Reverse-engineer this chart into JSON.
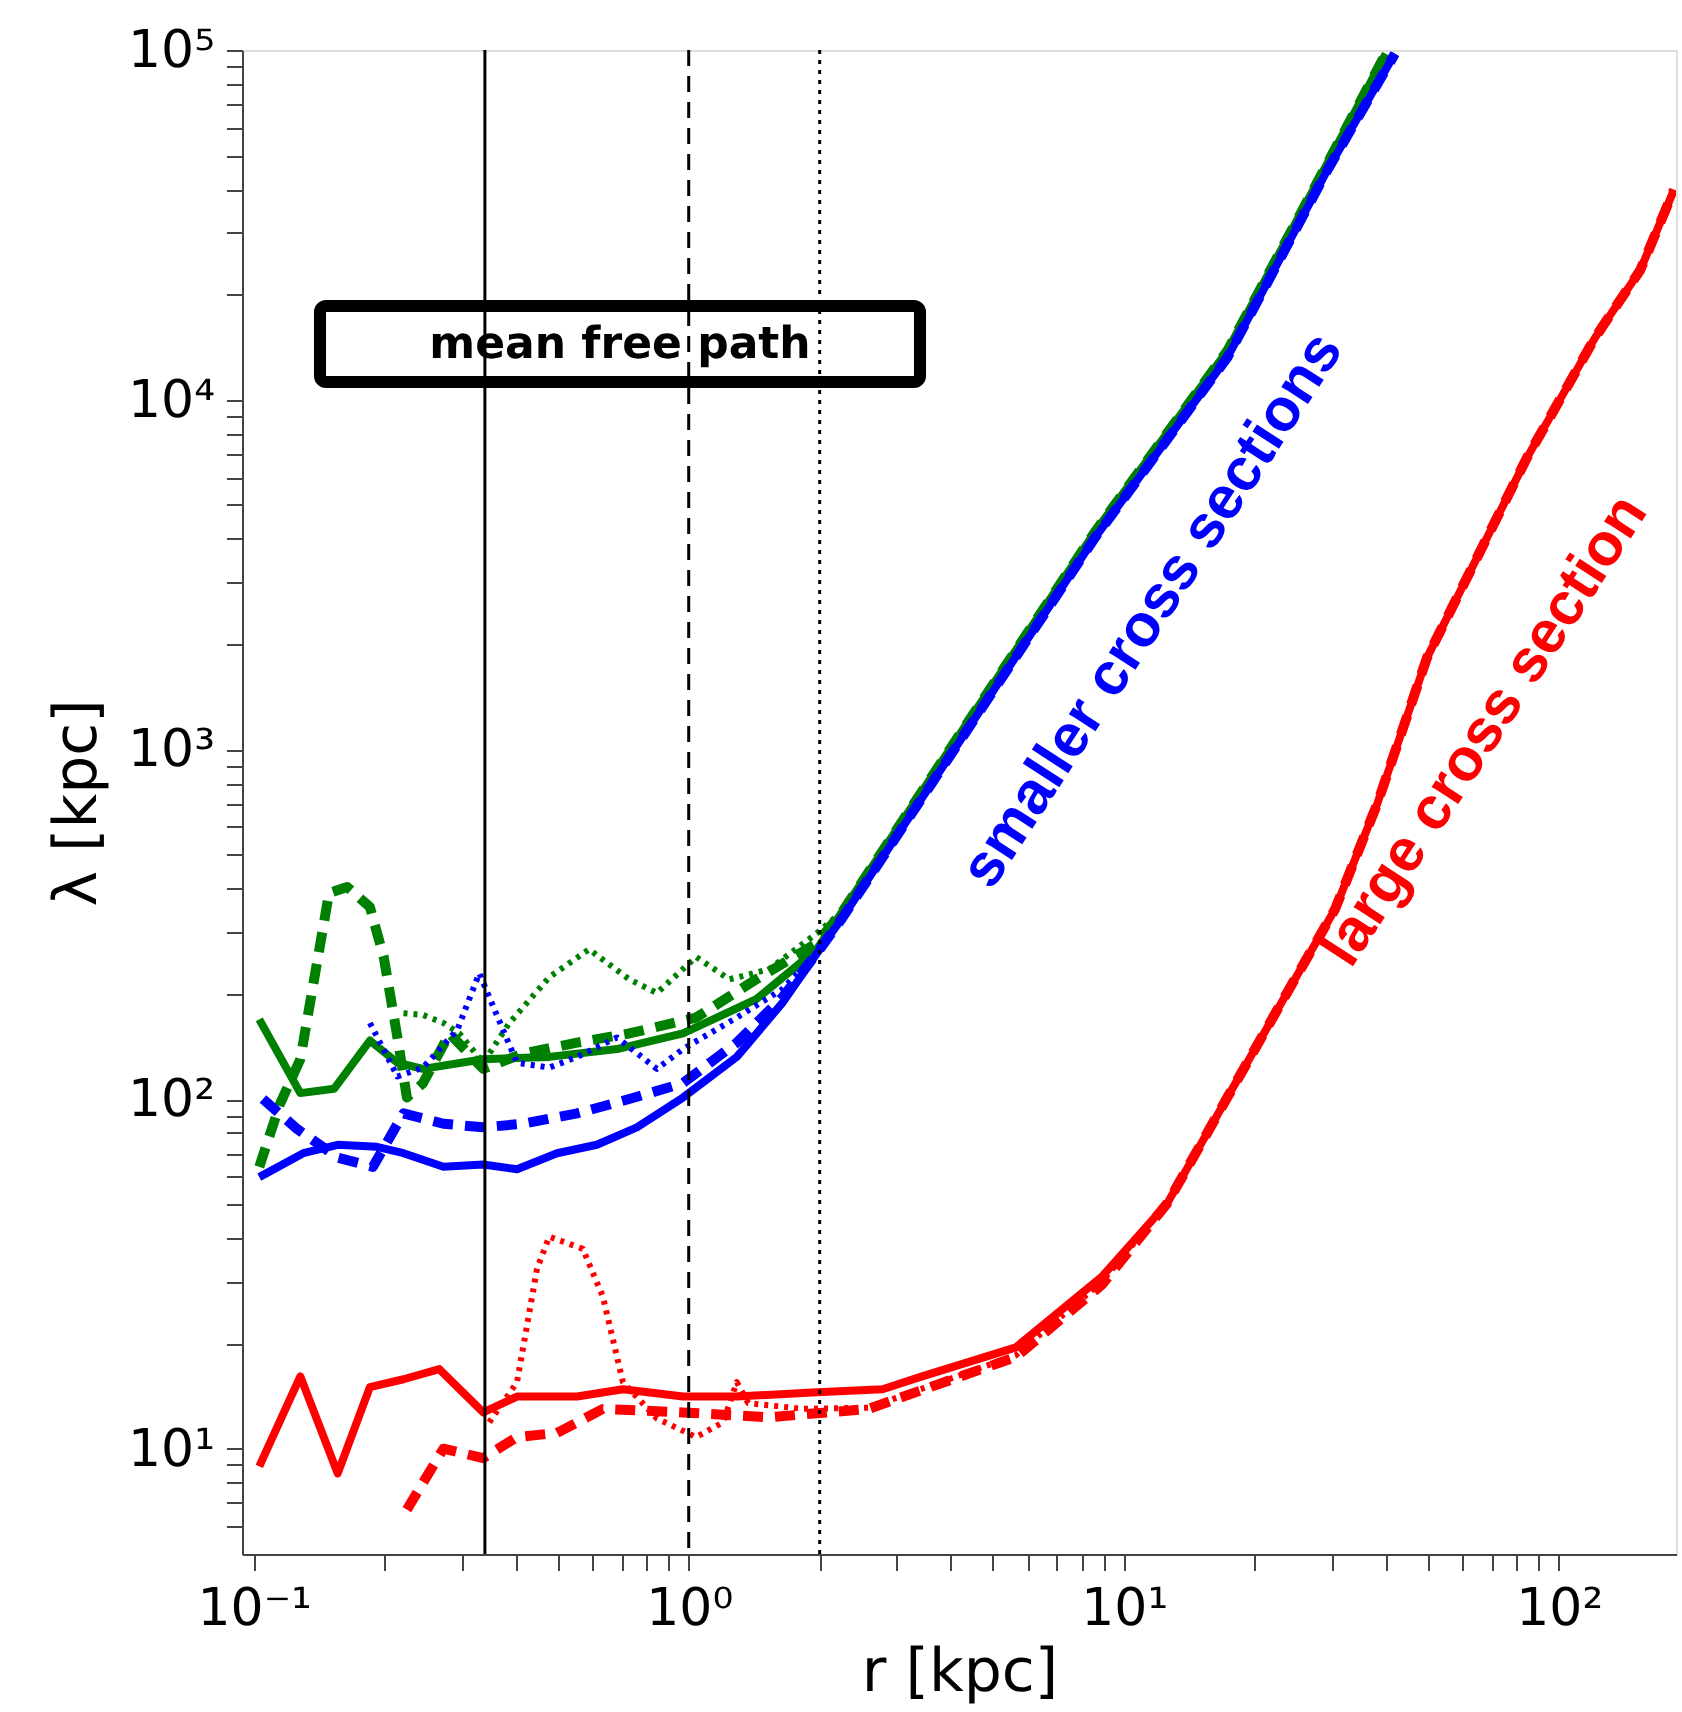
{
  "chart_data": {
    "type": "line",
    "xlabel": "r [kpc]",
    "ylabel": "λ [kpc]",
    "annotations": [
      "mean free path"
    ],
    "log": "xy",
    "grid": false,
    "marker": "none",
    "xlim": [
      0.094,
      186
    ],
    "ylim": [
      5,
      100000
    ],
    "xticks": [
      {
        "value": 0.1,
        "label": "10⁻¹"
      },
      {
        "value": 0.2,
        "label": null
      },
      {
        "value": 0.3,
        "label": null
      },
      {
        "value": 0.4,
        "label": null
      },
      {
        "value": 0.5,
        "label": null
      },
      {
        "value": 0.6,
        "label": null
      },
      {
        "value": 0.7,
        "label": null
      },
      {
        "value": 0.8,
        "label": null
      },
      {
        "value": 0.9,
        "label": null
      },
      {
        "value": 1,
        "label": "10⁰"
      },
      {
        "value": 2,
        "label": null
      },
      {
        "value": 3,
        "label": null
      },
      {
        "value": 4,
        "label": null
      },
      {
        "value": 5,
        "label": null
      },
      {
        "value": 6,
        "label": null
      },
      {
        "value": 7,
        "label": null
      },
      {
        "value": 8,
        "label": null
      },
      {
        "value": 9,
        "label": null
      },
      {
        "value": 10,
        "label": "10¹"
      },
      {
        "value": 20,
        "label": null
      },
      {
        "value": 30,
        "label": null
      },
      {
        "value": 40,
        "label": null
      },
      {
        "value": 50,
        "label": null
      },
      {
        "value": 60,
        "label": null
      },
      {
        "value": 70,
        "label": null
      },
      {
        "value": 80,
        "label": null
      },
      {
        "value": 90,
        "label": null
      },
      {
        "value": 100,
        "label": "10²"
      }
    ],
    "yticks": [
      {
        "value": 6,
        "label": null
      },
      {
        "value": 7,
        "label": null
      },
      {
        "value": 8,
        "label": null
      },
      {
        "value": 9,
        "label": null
      },
      {
        "value": 10,
        "label": "10¹"
      },
      {
        "value": 20,
        "label": null
      },
      {
        "value": 30,
        "label": null
      },
      {
        "value": 40,
        "label": null
      },
      {
        "value": 50,
        "label": null
      },
      {
        "value": 60,
        "label": null
      },
      {
        "value": 70,
        "label": null
      },
      {
        "value": 80,
        "label": null
      },
      {
        "value": 90,
        "label": null
      },
      {
        "value": 100,
        "label": "10²"
      },
      {
        "value": 200,
        "label": null
      },
      {
        "value": 300,
        "label": null
      },
      {
        "value": 400,
        "label": null
      },
      {
        "value": 500,
        "label": null
      },
      {
        "value": 600,
        "label": null
      },
      {
        "value": 700,
        "label": null
      },
      {
        "value": 800,
        "label": null
      },
      {
        "value": 900,
        "label": null
      },
      {
        "value": 1000,
        "label": "10³"
      },
      {
        "value": 2000,
        "label": null
      },
      {
        "value": 3000,
        "label": null
      },
      {
        "value": 4000,
        "label": null
      },
      {
        "value": 5000,
        "label": null
      },
      {
        "value": 6000,
        "label": null
      },
      {
        "value": 7000,
        "label": null
      },
      {
        "value": 8000,
        "label": null
      },
      {
        "value": 9000,
        "label": null
      },
      {
        "value": 10000,
        "label": "10⁴"
      },
      {
        "value": 20000,
        "label": null
      },
      {
        "value": 30000,
        "label": null
      },
      {
        "value": 40000,
        "label": null
      },
      {
        "value": 50000,
        "label": null
      },
      {
        "value": 60000,
        "label": null
      },
      {
        "value": 70000,
        "label": null
      },
      {
        "value": 80000,
        "label": null
      },
      {
        "value": 90000,
        "label": null
      },
      {
        "value": 100000,
        "label": "10⁵"
      }
    ],
    "ref_lines": [
      {
        "axis": "x",
        "value": 0.34,
        "color": "#000000",
        "line_style": "solid"
      },
      {
        "axis": "x",
        "value": 1,
        "color": "#000000",
        "line_style": "dashed"
      },
      {
        "axis": "x",
        "value": 2,
        "color": "#000000",
        "line_style": "dotted"
      }
    ],
    "series": [
      {
        "color": "#008000",
        "line_style": "dotted",
        "x": [
          0.221,
          0.245,
          0.273,
          0.297,
          0.337,
          0.387,
          0.478,
          0.59,
          0.73,
          0.845,
          1.04,
          1.24,
          1.53,
          1.97,
          2.26,
          4.25,
          8.6,
          17.3,
          29.4,
          40
        ],
        "values": [
          176,
          174,
          165,
          154,
          127,
          165,
          223,
          268,
          220,
          201,
          255,
          220,
          235,
          298,
          345,
          1130,
          4200,
          13800,
          47500,
          97500
        ]
      },
      {
        "color": "#008000",
        "line_style": "dashed",
        "x": [
          0.103,
          0.115,
          0.128,
          0.149,
          0.164,
          0.185,
          0.199,
          0.214,
          0.225,
          0.245,
          0.282,
          0.337,
          0.416,
          0.554,
          0.73,
          1.04,
          1.43,
          1.97,
          2.26,
          4.25,
          8.6,
          17.3,
          29.4,
          40
        ],
        "values": [
          64,
          97,
          130,
          388,
          404,
          354,
          255,
          150,
          101,
          111,
          154,
          122,
          135,
          145,
          154,
          171,
          220,
          279,
          345,
          1130,
          4200,
          13800,
          47500,
          97500
        ]
      },
      {
        "color": "#008000",
        "line_style": "solid",
        "x": [
          0.103,
          0.128,
          0.153,
          0.185,
          0.214,
          0.245,
          0.337,
          0.478,
          0.684,
          0.97,
          1.43,
          1.97,
          2.26,
          4.25,
          8.6,
          17.3,
          29.4,
          40
        ],
        "values": [
          169,
          104,
          107,
          147,
          127,
          122,
          130,
          132,
          139,
          154,
          193,
          268,
          345,
          1130,
          4200,
          13800,
          47500,
          97500
        ]
      },
      {
        "color": "#0000ff",
        "line_style": "dotted",
        "x": [
          0.185,
          0.214,
          0.245,
          0.294,
          0.33,
          0.374,
          0.403,
          0.478,
          0.554,
          0.684,
          0.845,
          0.97,
          1.29,
          1.64,
          1.97,
          2.26,
          4.25,
          8.6,
          17.3,
          29.4,
          42
        ],
        "values": [
          165,
          116,
          123,
          158,
          229,
          158,
          127,
          123,
          132,
          150,
          122,
          139,
          171,
          206,
          261,
          331,
          1080,
          4040,
          13200,
          45400,
          97500
        ]
      },
      {
        "color": "#0000ff",
        "line_style": "dashed",
        "x": [
          0.105,
          0.126,
          0.156,
          0.188,
          0.221,
          0.273,
          0.337,
          0.416,
          0.554,
          0.73,
          0.97,
          1.29,
          1.64,
          1.97,
          2.26,
          4.25,
          8.6,
          17.3,
          29.4,
          42
        ],
        "values": [
          100,
          82,
          68,
          64,
          91,
          85,
          83,
          85,
          91,
          100,
          111,
          145,
          195,
          261,
          331,
          1080,
          4040,
          13200,
          45400,
          97500
        ]
      },
      {
        "name": "smaller cross sections",
        "color": "#0000ff",
        "line_style": "solid",
        "x": [
          0.103,
          0.13,
          0.156,
          0.192,
          0.221,
          0.273,
          0.337,
          0.403,
          0.498,
          0.615,
          0.76,
          0.97,
          1.29,
          1.64,
          1.97,
          2.26,
          4.25,
          8.6,
          17.3,
          29.4,
          42
        ],
        "values": [
          59.8,
          70,
          74,
          73,
          70,
          64,
          65,
          63,
          70,
          74,
          83,
          101,
          132,
          188,
          261,
          331,
          1080,
          4040,
          13200,
          45400,
          97500
        ]
      },
      {
        "color": "#ff0000",
        "line_style": "dotted",
        "x": [
          0.348,
          0.403,
          0.448,
          0.478,
          0.571,
          0.635,
          0.706,
          0.845,
          1.04,
          1.2,
          1.29,
          1.37,
          1.83,
          2.59,
          5.65,
          8.9,
          12.6,
          17.3,
          23,
          30.6,
          38.3,
          49.8,
          84.5,
          121,
          154,
          184
        ],
        "values": [
          11.9,
          15.5,
          32.7,
          40.4,
          37.3,
          27.2,
          15.5,
          12.2,
          10.8,
          11.9,
          15.5,
          13.5,
          13,
          13.1,
          18.5,
          30,
          50.4,
          101,
          188,
          349,
          701,
          1830,
          6820,
          15000,
          23500,
          39800
        ]
      },
      {
        "color": "#ff0000",
        "line_style": "dashed",
        "x": [
          0.225,
          0.273,
          0.337,
          0.403,
          0.498,
          0.635,
          0.97,
          1.53,
          2.59,
          5.65,
          8.9,
          12.6,
          17.3,
          23,
          30.6,
          38.3,
          49.8,
          84.5,
          121,
          154,
          184
        ],
        "values": [
          6.7,
          10,
          9.4,
          10.8,
          11.1,
          13,
          12.7,
          12.3,
          13,
          18.3,
          29.4,
          50.4,
          101,
          188,
          349,
          701,
          1830,
          6820,
          15000,
          23500,
          39800
        ]
      },
      {
        "name": "large cross section",
        "color": "#ff0000",
        "line_style": "solid",
        "x": [
          0.103,
          0.128,
          0.156,
          0.185,
          0.221,
          0.267,
          0.337,
          0.403,
          0.554,
          0.706,
          0.97,
          1.29,
          1.97,
          2.79,
          3.44,
          5.65,
          8.9,
          12.6,
          17.3,
          23,
          30.6,
          38.3,
          49.8,
          84.5,
          121,
          154,
          184
        ],
        "values": [
          8.9,
          16.1,
          8.5,
          15.0,
          15.8,
          16.9,
          12.7,
          14.1,
          14.1,
          14.8,
          14.1,
          14.1,
          14.5,
          14.8,
          16.1,
          19.5,
          31,
          50.4,
          101,
          188,
          349,
          701,
          1830,
          6820,
          15000,
          23500,
          39800
        ]
      }
    ]
  }
}
